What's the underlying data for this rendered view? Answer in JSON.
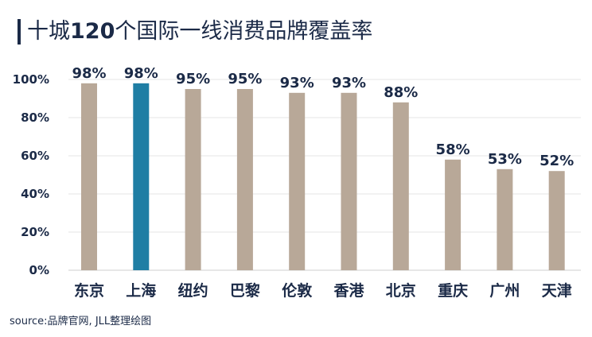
{
  "header": {
    "title": "十城120个国际一线消费品牌覆盖率"
  },
  "footer": {
    "source": "source:品牌官网, JLL整理绘图"
  },
  "colors": {
    "bar_default": "#b8a898",
    "bar_highlight": "#1f7ea4",
    "text": "#1b2a47",
    "grid": "#e6e6e6"
  },
  "chart_data": {
    "type": "bar",
    "title": "十城120个国际一线消费品牌覆盖率",
    "xlabel": "",
    "ylabel": "",
    "categories": [
      "东京",
      "上海",
      "纽约",
      "巴黎",
      "伦敦",
      "香港",
      "北京",
      "重庆",
      "广州",
      "天津"
    ],
    "values": [
      98,
      98,
      95,
      95,
      93,
      93,
      88,
      58,
      53,
      52
    ],
    "data_labels": [
      "98%",
      "98%",
      "95%",
      "95%",
      "93%",
      "93%",
      "88%",
      "58%",
      "53%",
      "52%"
    ],
    "highlight": "上海",
    "ylim": [
      0,
      100
    ],
    "yticks": [
      0,
      20,
      40,
      60,
      80,
      100
    ],
    "ytick_labels": [
      "0%",
      "20%",
      "40%",
      "60%",
      "80%",
      "100%"
    ],
    "grid": true,
    "legend": "none"
  }
}
